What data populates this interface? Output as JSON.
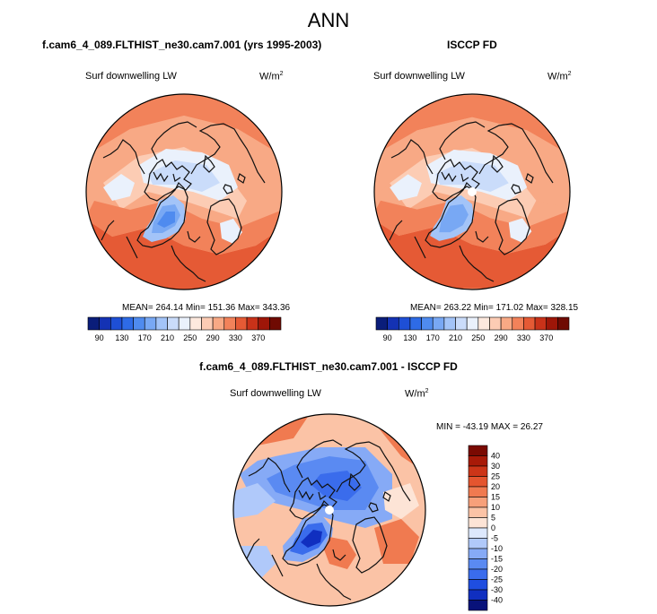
{
  "title": "ANN",
  "panels": {
    "left": {
      "case": "f.cam6_4_089.FLTHIST_ne30.cam7.001 (yrs 1995-2003)",
      "variable": "Surf downwelling LW",
      "units": "W/m",
      "units_exp": "2",
      "stats": "MEAN= 264.14  Min= 151.36  Max= 343.36"
    },
    "right": {
      "case": "ISCCP FD",
      "variable": "Surf downwelling LW",
      "units": "W/m",
      "units_exp": "2",
      "stats": "MEAN= 263.22  Min= 171.02  Max= 328.15"
    },
    "diff": {
      "case": "f.cam6_4_089.FLTHIST_ne30.cam7.001 - ISCCP FD",
      "variable": "Surf downwelling LW",
      "units": "W/m",
      "units_exp": "2",
      "stats": "MIN = -43.19 MAX =  26.27"
    }
  },
  "chart_data": [
    {
      "type": "heatmap",
      "projection": "north-polar-stereographic",
      "title": "f.cam6_4_089.FLTHIST_ne30.cam7.001 (yrs 1995-2003)",
      "subtitle": "Surf downwelling LW",
      "units": "W/m2",
      "mean": 264.14,
      "min": 151.36,
      "max": 343.36,
      "colorbar_orientation": "horizontal",
      "colorbar_levels": [
        70,
        90,
        110,
        130,
        150,
        170,
        190,
        210,
        230,
        250,
        270,
        290,
        310,
        330,
        350,
        370
      ],
      "colorbar_labels": [
        "90",
        "130",
        "170",
        "210",
        "250",
        "290",
        "330",
        "370"
      ],
      "colorbar_colors": [
        "#0a1d7a",
        "#1432b4",
        "#1e4fd6",
        "#2e6be6",
        "#4f8bef",
        "#78a8f4",
        "#a3c4f8",
        "#cadcfa",
        "#eaf1fc",
        "#fde9de",
        "#fcccb4",
        "#f8a985",
        "#f2825a",
        "#e55a35",
        "#c93219",
        "#9e1608",
        "#6f0a02"
      ]
    },
    {
      "type": "heatmap",
      "projection": "north-polar-stereographic",
      "title": "ISCCP FD",
      "subtitle": "Surf downwelling LW",
      "units": "W/m2",
      "mean": 263.22,
      "min": 171.02,
      "max": 328.15,
      "colorbar_orientation": "horizontal",
      "colorbar_levels": [
        70,
        90,
        110,
        130,
        150,
        170,
        190,
        210,
        230,
        250,
        270,
        290,
        310,
        330,
        350,
        370
      ],
      "colorbar_labels": [
        "90",
        "130",
        "170",
        "210",
        "250",
        "290",
        "330",
        "370"
      ],
      "colorbar_colors": [
        "#0a1d7a",
        "#1432b4",
        "#1e4fd6",
        "#2e6be6",
        "#4f8bef",
        "#78a8f4",
        "#a3c4f8",
        "#cadcfa",
        "#eaf1fc",
        "#fde9de",
        "#fcccb4",
        "#f8a985",
        "#f2825a",
        "#e55a35",
        "#c93219",
        "#9e1608",
        "#6f0a02"
      ]
    },
    {
      "type": "heatmap",
      "projection": "north-polar-stereographic",
      "title": "f.cam6_4_089.FLTHIST_ne30.cam7.001 - ISCCP FD",
      "subtitle": "Surf downwelling LW",
      "units": "W/m2",
      "min": -43.19,
      "max": 26.27,
      "colorbar_orientation": "vertical",
      "colorbar_levels": [
        -40,
        -30,
        -25,
        -20,
        -15,
        -10,
        -5,
        0,
        5,
        10,
        15,
        20,
        25,
        30,
        40
      ],
      "colorbar_labels": [
        "40",
        "30",
        "25",
        "20",
        "15",
        "10",
        "5",
        "0",
        "-5",
        "-10",
        "-15",
        "-20",
        "-25",
        "-30",
        "-40"
      ],
      "colorbar_colors": [
        "#08127a",
        "#102fc0",
        "#1f4ee0",
        "#3a6cec",
        "#5a8af2",
        "#86aaf6",
        "#b0c9fa",
        "#dde8fc",
        "#fde4d6",
        "#fbc3a6",
        "#f7a07a",
        "#f07a50",
        "#e4552f",
        "#cc3518",
        "#a81a08",
        "#7a0a02"
      ]
    }
  ]
}
